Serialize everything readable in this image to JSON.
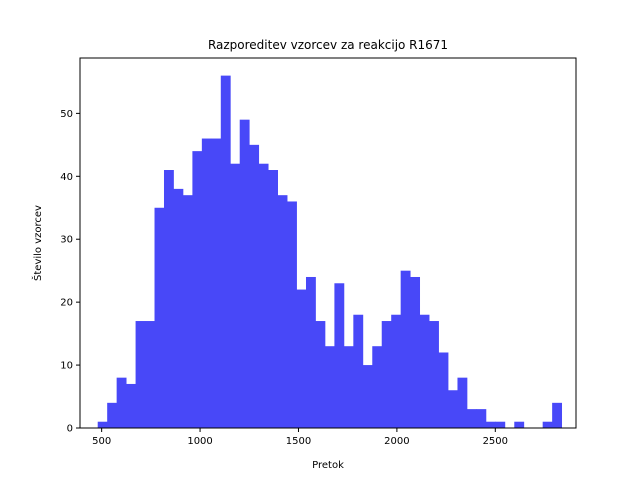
{
  "chart_data": {
    "type": "bar",
    "title": "Razporeditev vzorcev za reakcijo R1671",
    "xlabel": "Pretok",
    "ylabel": "Število vzorcev",
    "bar_color": "#4848f8",
    "xlim": [
      390,
      2910
    ],
    "ylim": [
      0,
      58.8
    ],
    "xticks": [
      "500",
      "1000",
      "1500",
      "2000",
      "2500"
    ],
    "yticks": [
      "0",
      "10",
      "20",
      "30",
      "40",
      "50"
    ],
    "x_tick_values": [
      500,
      1000,
      1500,
      2000,
      2500
    ],
    "y_tick_values": [
      0,
      10,
      20,
      30,
      40,
      50
    ],
    "bin_edges": [
      480.0,
      528.1,
      576.2,
      624.3,
      672.4,
      720.5,
      768.6,
      816.7,
      864.8,
      912.9,
      961.0,
      1009.1,
      1057.2,
      1105.3,
      1153.4,
      1201.5,
      1249.6,
      1297.7,
      1345.8,
      1393.9,
      1442.0,
      1490.1,
      1538.2,
      1586.3,
      1634.4,
      1682.5,
      1730.6,
      1778.7,
      1826.8,
      1874.9,
      1923.0,
      1971.1,
      2019.2,
      2067.3,
      2115.4,
      2163.5,
      2211.6,
      2259.7,
      2307.8,
      2355.9,
      2404.0,
      2452.1,
      2500.2,
      2548.3,
      2596.4,
      2644.5,
      2692.6,
      2740.7,
      2788.8,
      2836.9
    ],
    "values": [
      1,
      4,
      8,
      7,
      17,
      17,
      35,
      41,
      38,
      37,
      44,
      46,
      46,
      56,
      42,
      49,
      45,
      42,
      41,
      37,
      36,
      22,
      24,
      17,
      13,
      23,
      13,
      18,
      10,
      13,
      17,
      18,
      25,
      24,
      18,
      17,
      12,
      6,
      8,
      3,
      3,
      1,
      1,
      0,
      1,
      0,
      0,
      1,
      4
    ]
  }
}
